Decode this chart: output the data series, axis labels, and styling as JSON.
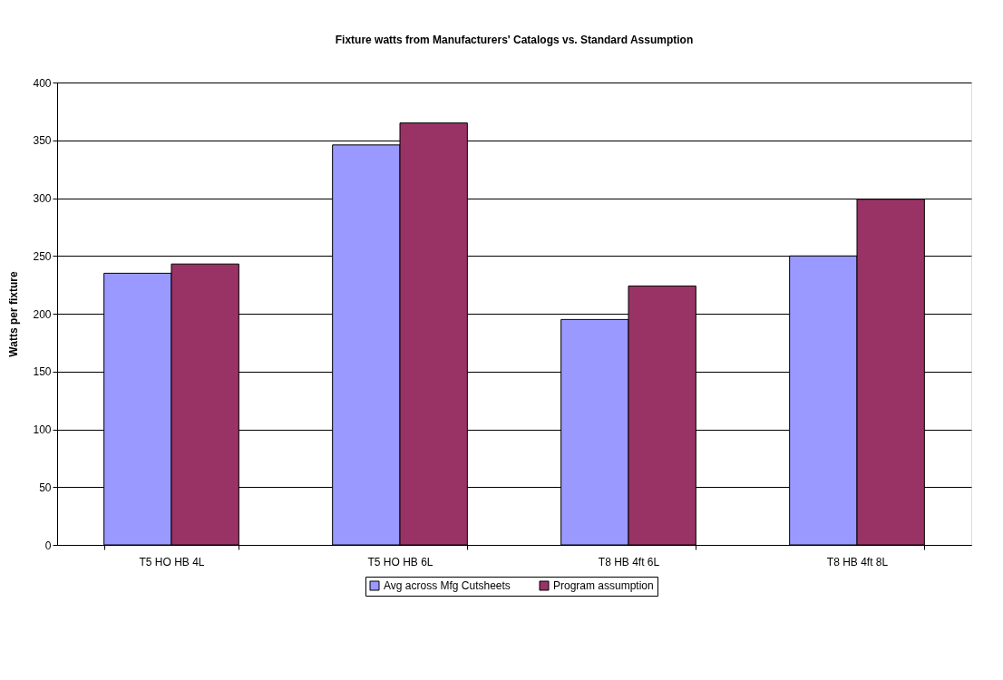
{
  "chart_data": {
    "type": "bar",
    "title": "Fixture watts from Manufacturers' Catalogs vs. Standard Assumption",
    "ylabel": "Watts per fixture",
    "categories": [
      "T5 HO HB 4L",
      "T5 HO HB 6L",
      "T8 HB 4ft 6L",
      "T8 HB 4ft 8L"
    ],
    "series": [
      {
        "name": "Avg across Mfg Cutsheets",
        "color": "#9999ff",
        "values": [
          235,
          346,
          195,
          250
        ]
      },
      {
        "name": "Program assumption",
        "color": "#993366",
        "values": [
          243,
          365,
          224,
          299
        ]
      }
    ],
    "ylim": [
      0,
      400
    ],
    "yticks": [
      0,
      50,
      100,
      150,
      200,
      250,
      300,
      350,
      400
    ],
    "grid": "y",
    "legend": "bottom"
  }
}
